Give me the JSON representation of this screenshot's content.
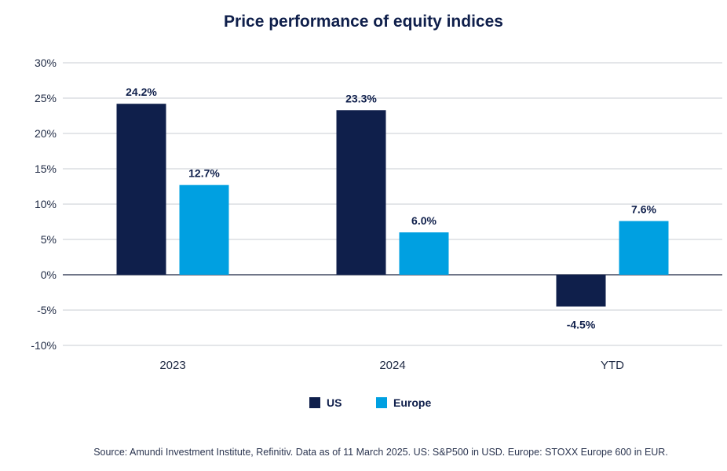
{
  "chart_data": {
    "type": "bar",
    "title": "Price performance of equity indices",
    "categories": [
      "2023",
      "2024",
      "YTD"
    ],
    "series": [
      {
        "name": "US",
        "values": [
          24.2,
          23.3,
          -4.5
        ],
        "labels": [
          "24.2%",
          "23.3%",
          "-4.5%"
        ],
        "color": "#0f1f4b"
      },
      {
        "name": "Europe",
        "values": [
          12.7,
          6.0,
          7.6
        ],
        "labels": [
          "12.7%",
          "6.0%",
          "7.6%"
        ],
        "color": "#00a0e1"
      }
    ],
    "ylim": [
      -10,
      30
    ],
    "yticks": [
      30,
      25,
      20,
      15,
      10,
      5,
      0,
      -5,
      -10
    ],
    "ytick_labels": [
      "30%",
      "25%",
      "20%",
      "15%",
      "10%",
      "5%",
      "0%",
      "-5%",
      "-10%"
    ],
    "grid": true,
    "legend_position": "bottom-center",
    "source": "Source: Amundi Investment Institute, Refinitiv. Data as of 11 March 2025. US: S&P500 in USD. Europe: STOXX Europe 600 in EUR."
  }
}
